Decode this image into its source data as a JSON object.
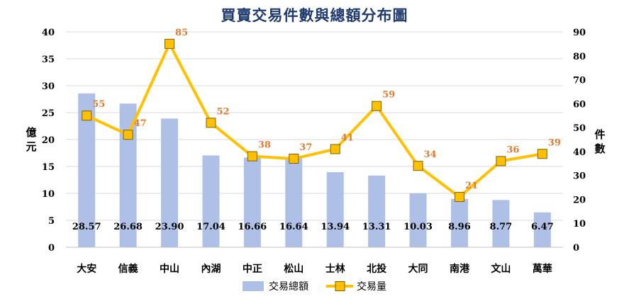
{
  "chart_data": {
    "type": "bar+line",
    "title": "買賣交易件數與總額分布圖",
    "categories": [
      "大安",
      "信義",
      "中山",
      "內湖",
      "中正",
      "松山",
      "士林",
      "北投",
      "大同",
      "南港",
      "文山",
      "萬華"
    ],
    "series": [
      {
        "name": "交易總額",
        "type": "bar",
        "axis": "left",
        "color": "#aec0e6",
        "values": [
          28.57,
          26.68,
          23.9,
          17.04,
          16.66,
          16.64,
          13.94,
          13.31,
          10.03,
          8.96,
          8.77,
          6.47
        ],
        "labels": [
          "28.57",
          "26.68",
          "23.90",
          "17.04",
          "16.66",
          "16.64",
          "13.94",
          "13.31",
          "10.03",
          "8.96",
          "8.77",
          "6.47"
        ]
      },
      {
        "name": "交易量",
        "type": "line",
        "axis": "right",
        "color": "#ffc000",
        "marker_color": "#ffc000",
        "label_color": "#e07b30",
        "values": [
          55,
          47,
          85,
          52,
          38,
          37,
          41,
          59,
          34,
          21,
          36,
          39
        ],
        "labels": [
          "55",
          "47",
          "85",
          "52",
          "38",
          "37",
          "41",
          "59",
          "34",
          "21",
          "36",
          "39"
        ]
      }
    ],
    "y_left": {
      "label": "億元",
      "ylim": [
        0,
        40
      ],
      "ticks": [
        "0",
        "5",
        "10",
        "15",
        "20",
        "25",
        "30",
        "35",
        "40"
      ]
    },
    "y_right": {
      "label": "件數",
      "ylim": [
        0,
        90
      ],
      "ticks": [
        "0",
        "10",
        "20",
        "30",
        "40",
        "50",
        "60",
        "70",
        "80",
        "90"
      ]
    },
    "grid": true,
    "legend_position": "bottom"
  }
}
